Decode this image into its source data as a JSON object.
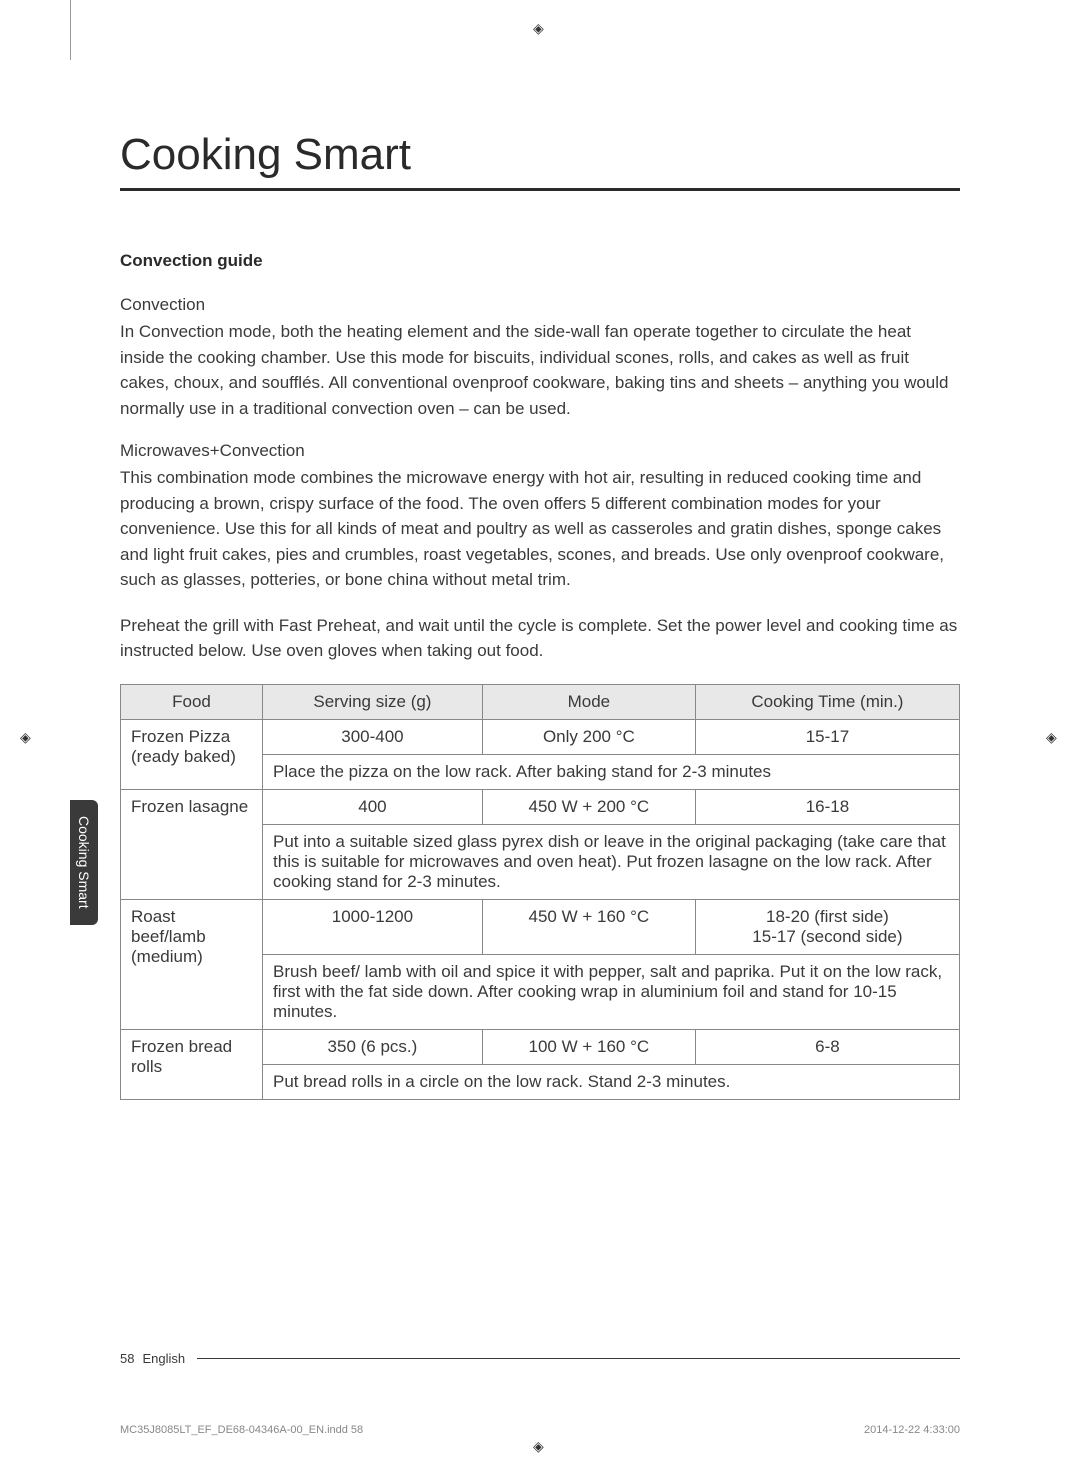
{
  "cropLines": {
    "color": "#999999"
  },
  "title": "Cooking Smart",
  "sideTab": "Cooking Smart",
  "sectionHeading": "Convection guide",
  "convection": {
    "title": "Convection",
    "text": "In Convection mode, both the heating element and the side-wall fan operate together to circulate the heat inside the cooking chamber. Use this mode for biscuits, individual scones, rolls, and cakes as well as fruit cakes, choux, and soufflés. All conventional ovenproof cookware, baking tins and sheets – anything you would normally use in a traditional convection oven – can be used."
  },
  "microConv": {
    "title": "Microwaves+Convection",
    "text": "This combination mode combines the microwave energy with hot air, resulting in reduced cooking time and producing a brown, crispy surface of the food. The oven offers 5 different combination modes for your convenience. Use this for all kinds of meat and poultry as well as casseroles and gratin dishes, sponge cakes and light fruit cakes, pies and crumbles, roast vegetables, scones, and breads. Use only ovenproof cookware, such as glasses, potteries, or bone china without metal trim."
  },
  "preheat": "Preheat the grill with Fast Preheat, and wait until the cycle is complete. Set the power level and cooking time as instructed below. Use oven gloves when taking out food.",
  "table": {
    "headers": [
      "Food",
      "Serving size (g)",
      "Mode",
      "Cooking Time (min.)"
    ],
    "headerBg": "#e8e8e8",
    "borderColor": "#888888",
    "rows": [
      {
        "food": "Frozen Pizza (ready baked)",
        "serving": "300-400",
        "mode": "Only 200 °C",
        "time": "15-17",
        "note": "Place the pizza on the low rack. After baking stand for 2-3 minutes"
      },
      {
        "food": "Frozen lasagne",
        "serving": "400",
        "mode": "450 W + 200 °C",
        "time": "16-18",
        "note": "Put into a suitable sized glass pyrex dish or leave in the original packaging (take care that this is suitable for microwaves and oven heat). Put frozen lasagne on the low rack. After cooking stand for 2-3 minutes."
      },
      {
        "food": "Roast beef/lamb (medium)",
        "serving": "1000-1200",
        "mode": "450 W + 160 °C",
        "time": "18-20 (first side)\n15-17 (second side)",
        "note": "Brush beef/ lamb with oil and spice it with pepper, salt and paprika. Put it on the low rack, first with the fat side down. After cooking wrap in aluminium foil and stand for 10-15 minutes."
      },
      {
        "food": "Frozen bread rolls",
        "serving": "350 (6 pcs.)",
        "mode": "100 W + 160 °C",
        "time": "6-8",
        "note": "Put bread rolls in a circle on the low rack. Stand 2-3 minutes."
      }
    ]
  },
  "footer": {
    "pageNum": "58",
    "lang": "English"
  },
  "printFooter": {
    "filename": "MC35J8085LT_EF_DE68-04346A-00_EN.indd   58",
    "datetime": "2014-12-22   4:33:00"
  }
}
